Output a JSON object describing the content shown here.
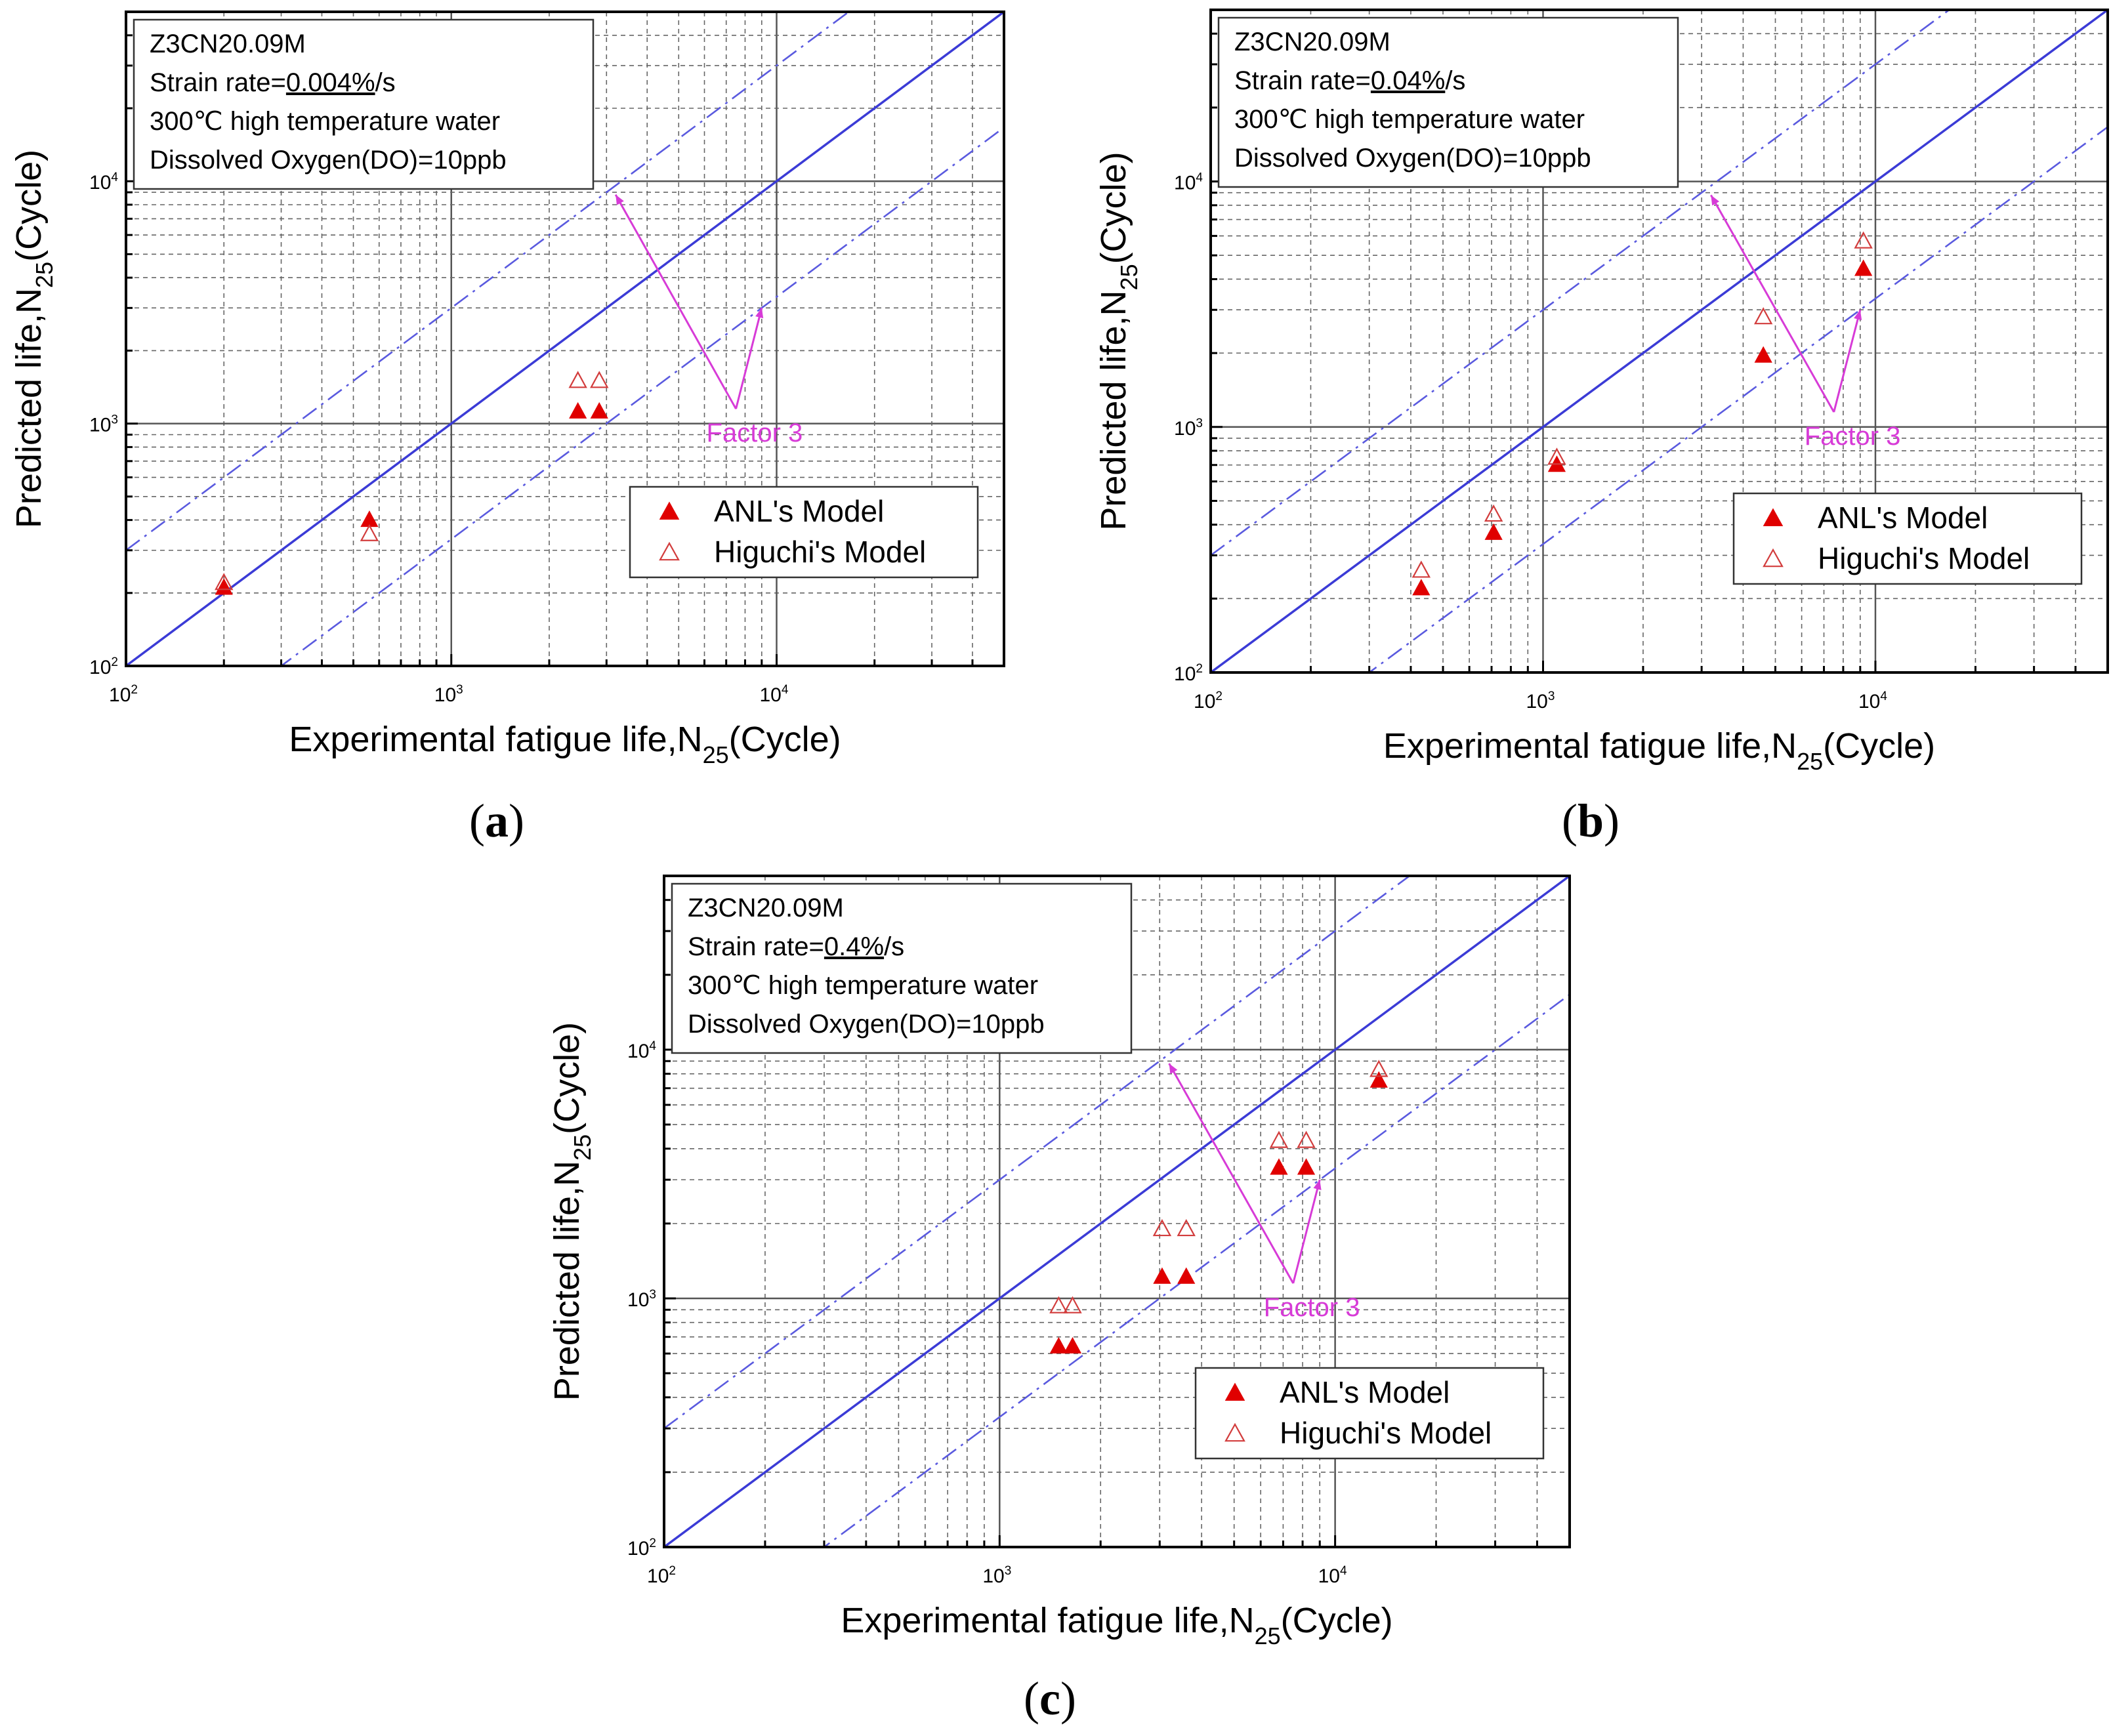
{
  "figure": {
    "panel_labels": [
      "a",
      "b",
      "c"
    ]
  },
  "colors": {
    "axis": "#000000",
    "grid_major": "#555555",
    "grid_minor": "#666666",
    "one_to_one_line": "#3b3bd6",
    "factor_lines": "#5a5adf",
    "anl_marker": "#e00000",
    "higuchi_marker": "#d23c3c",
    "annotation": "#d73bd7"
  },
  "chart_data": [
    {
      "id": "a",
      "type": "scatter",
      "scale": "log-log",
      "xlim": [
        100,
        50000
      ],
      "ylim": [
        100,
        50000
      ],
      "xlabel": {
        "main": "Experimental fatigue life,N",
        "sub": "25",
        "tail": "(Cycle)"
      },
      "ylabel": {
        "main": "Predicted life,N",
        "sub": "25",
        "tail": "(Cycle)"
      },
      "xticks": [
        {
          "value": 100,
          "base": "10",
          "exp": "2"
        },
        {
          "value": 1000,
          "base": "10",
          "exp": "3"
        },
        {
          "value": 10000,
          "base": "10",
          "exp": "4"
        }
      ],
      "yticks": [
        {
          "value": 100,
          "base": "10",
          "exp": "2"
        },
        {
          "value": 1000,
          "base": "10",
          "exp": "3"
        },
        {
          "value": 10000,
          "base": "10",
          "exp": "4"
        }
      ],
      "info": {
        "material": "Z3CN20.09M",
        "strain_prefix": "Strain rate=",
        "strain_value": "0.004%",
        "strain_suffix": "/s",
        "temperature": "300℃  high temperature water",
        "oxygen": "Dissolved Oxygen(DO)=10ppb"
      },
      "annotation": {
        "text": "Factor 3",
        "from": [
          7500,
          1150
        ],
        "to_upper": [
          3200,
          8800
        ],
        "to_lower": [
          9000,
          3000
        ]
      },
      "reference_lines": [
        {
          "name": "1:1",
          "factor": 1,
          "style": "solid"
        },
        {
          "name": "x3",
          "factor": 3,
          "style": "dash-dot"
        },
        {
          "name": "/3",
          "factor": 0.3333,
          "style": "dash-dot"
        }
      ],
      "legend": {
        "position": "bottom-right",
        "entries": [
          "ANL's Model",
          "Higuchi's Model"
        ]
      },
      "series": [
        {
          "name": "ANL's Model",
          "marker": "filled-triangle",
          "points": [
            [
              200,
              210
            ],
            [
              560,
              400
            ],
            [
              2450,
              1120
            ],
            [
              2850,
              1120
            ]
          ]
        },
        {
          "name": "Higuchi's Model",
          "marker": "open-triangle",
          "points": [
            [
              200,
              220
            ],
            [
              560,
              350
            ],
            [
              2450,
              1500
            ],
            [
              2850,
              1500
            ]
          ]
        }
      ]
    },
    {
      "id": "b",
      "type": "scatter",
      "scale": "log-log",
      "xlim": [
        100,
        50000
      ],
      "ylim": [
        100,
        50000
      ],
      "xlabel": {
        "main": "Experimental fatigue life,N",
        "sub": "25",
        "tail": "(Cycle)"
      },
      "ylabel": {
        "main": "Predicted life,N",
        "sub": "25",
        "tail": "(Cycle)"
      },
      "xticks": [
        {
          "value": 100,
          "base": "10",
          "exp": "2"
        },
        {
          "value": 1000,
          "base": "10",
          "exp": "3"
        },
        {
          "value": 10000,
          "base": "10",
          "exp": "4"
        }
      ],
      "yticks": [
        {
          "value": 100,
          "base": "10",
          "exp": "2"
        },
        {
          "value": 1000,
          "base": "10",
          "exp": "3"
        },
        {
          "value": 10000,
          "base": "10",
          "exp": "4"
        }
      ],
      "info": {
        "material": "Z3CN20.09M",
        "strain_prefix": "Strain rate=",
        "strain_value": "0.04%",
        "strain_suffix": "/s",
        "temperature": "300℃  high temperature water",
        "oxygen": "Dissolved Oxygen(DO)=10ppb"
      },
      "annotation": {
        "text": "Factor 3",
        "from": [
          7500,
          1150
        ],
        "to_upper": [
          3200,
          8800
        ],
        "to_lower": [
          9000,
          3000
        ]
      },
      "reference_lines": [
        {
          "name": "1:1",
          "factor": 1,
          "style": "solid"
        },
        {
          "name": "x3",
          "factor": 3,
          "style": "dash-dot"
        },
        {
          "name": "/3",
          "factor": 0.3333,
          "style": "dash-dot"
        }
      ],
      "legend": {
        "position": "bottom-right",
        "entries": [
          "ANL's Model",
          "Higuchi's Model"
        ]
      },
      "series": [
        {
          "name": "ANL's Model",
          "marker": "filled-triangle",
          "points": [
            [
              430,
              220
            ],
            [
              710,
              370
            ],
            [
              1100,
              700
            ],
            [
              4600,
              1950
            ],
            [
              9200,
              4400
            ]
          ]
        },
        {
          "name": "Higuchi's Model",
          "marker": "open-triangle",
          "points": [
            [
              430,
              260
            ],
            [
              710,
              440
            ],
            [
              1100,
              750
            ],
            [
              4600,
              2800
            ],
            [
              9200,
              5700
            ]
          ]
        }
      ]
    },
    {
      "id": "c",
      "type": "scatter",
      "scale": "log-log",
      "xlim": [
        100,
        50000
      ],
      "ylim": [
        100,
        50000
      ],
      "xlabel": {
        "main": "Experimental fatigue life,N",
        "sub": "25",
        "tail": "(Cycle)"
      },
      "ylabel": {
        "main": "Predicted life,N",
        "sub": "25",
        "tail": "(Cycle)"
      },
      "xticks": [
        {
          "value": 100,
          "base": "10",
          "exp": "2"
        },
        {
          "value": 1000,
          "base": "10",
          "exp": "3"
        },
        {
          "value": 10000,
          "base": "10",
          "exp": "4"
        }
      ],
      "yticks": [
        {
          "value": 100,
          "base": "10",
          "exp": "2"
        },
        {
          "value": 1000,
          "base": "10",
          "exp": "3"
        },
        {
          "value": 10000,
          "base": "10",
          "exp": "4"
        }
      ],
      "info": {
        "material": "Z3CN20.09M",
        "strain_prefix": "Strain rate=",
        "strain_value": "0.4%",
        "strain_suffix": "/s",
        "temperature": "300℃  high temperature water",
        "oxygen": "Dissolved Oxygen(DO)=10ppb"
      },
      "annotation": {
        "text": "Factor 3",
        "from": [
          7500,
          1150
        ],
        "to_upper": [
          3200,
          8800
        ],
        "to_lower": [
          9000,
          3000
        ]
      },
      "reference_lines": [
        {
          "name": "1:1",
          "factor": 1,
          "style": "solid"
        },
        {
          "name": "x3",
          "factor": 3,
          "style": "dash-dot"
        },
        {
          "name": "/3",
          "factor": 0.3333,
          "style": "dash-dot"
        }
      ],
      "legend": {
        "position": "bottom-right",
        "entries": [
          "ANL's Model",
          "Higuchi's Model"
        ]
      },
      "series": [
        {
          "name": "ANL's Model",
          "marker": "filled-triangle",
          "points": [
            [
              1500,
              640
            ],
            [
              1650,
              640
            ],
            [
              3050,
              1220
            ],
            [
              3600,
              1220
            ],
            [
              6800,
              3350
            ],
            [
              8200,
              3350
            ],
            [
              13500,
              7500
            ]
          ]
        },
        {
          "name": "Higuchi's Model",
          "marker": "open-triangle",
          "points": [
            [
              1500,
              930
            ],
            [
              1650,
              930
            ],
            [
              3050,
              1900
            ],
            [
              3600,
              1900
            ],
            [
              6800,
              4300
            ],
            [
              8200,
              4300
            ],
            [
              13500,
              8300
            ]
          ]
        }
      ]
    }
  ]
}
